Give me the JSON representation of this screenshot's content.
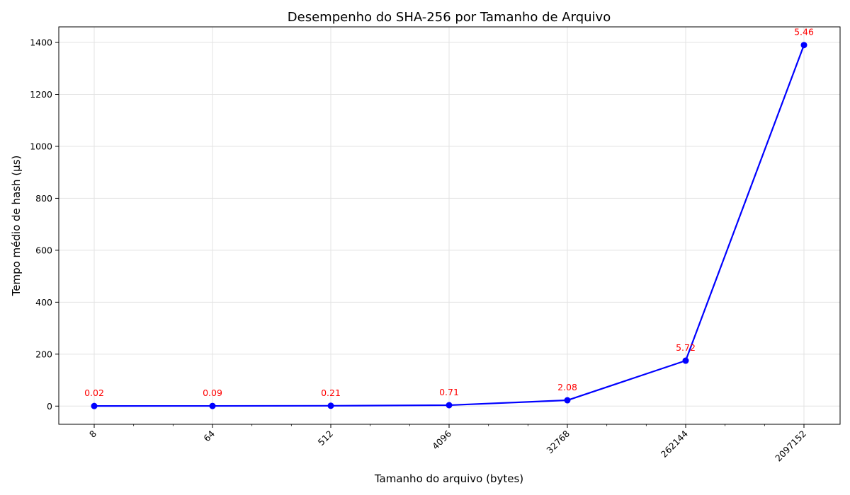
{
  "chart_data": {
    "type": "line",
    "title": "Desempenho do SHA-256 por Tamanho de Arquivo",
    "xlabel": "Tamanho do arquivo (bytes)",
    "ylabel": "Tempo médio de hash (µs)",
    "x_scale": "log2",
    "x": [
      8,
      64,
      512,
      4096,
      32768,
      262144,
      2097152
    ],
    "x_tick_labels": [
      "8",
      "64",
      "512",
      "4096",
      "32768",
      "262144",
      "2097152"
    ],
    "series": [
      {
        "values": [
          0.4,
          0.6,
          1.3,
          3.5,
          22.5,
          175,
          1390
        ],
        "point_labels": [
          "0.02",
          "0.09",
          "0.21",
          "0.71",
          "2.08",
          "5.72",
          "5.46"
        ],
        "color": "#0000ff",
        "label_color": "#ff0000",
        "marker": "circle"
      }
    ],
    "ylim": [
      -70,
      1460
    ],
    "y_ticks": [
      0,
      200,
      400,
      600,
      800,
      1000,
      1200,
      1400
    ],
    "grid": true
  }
}
